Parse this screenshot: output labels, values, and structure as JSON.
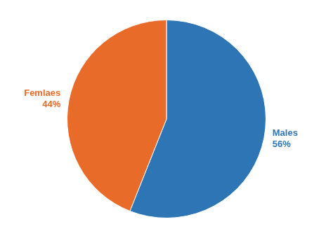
{
  "chart_data": {
    "type": "pie",
    "categories": [
      "Males",
      "Femlaes"
    ],
    "values": [
      56,
      44
    ],
    "value_labels": [
      "56%",
      "44%"
    ],
    "colors": [
      "#2E75B6",
      "#E86B2A"
    ],
    "data_labels": true
  }
}
